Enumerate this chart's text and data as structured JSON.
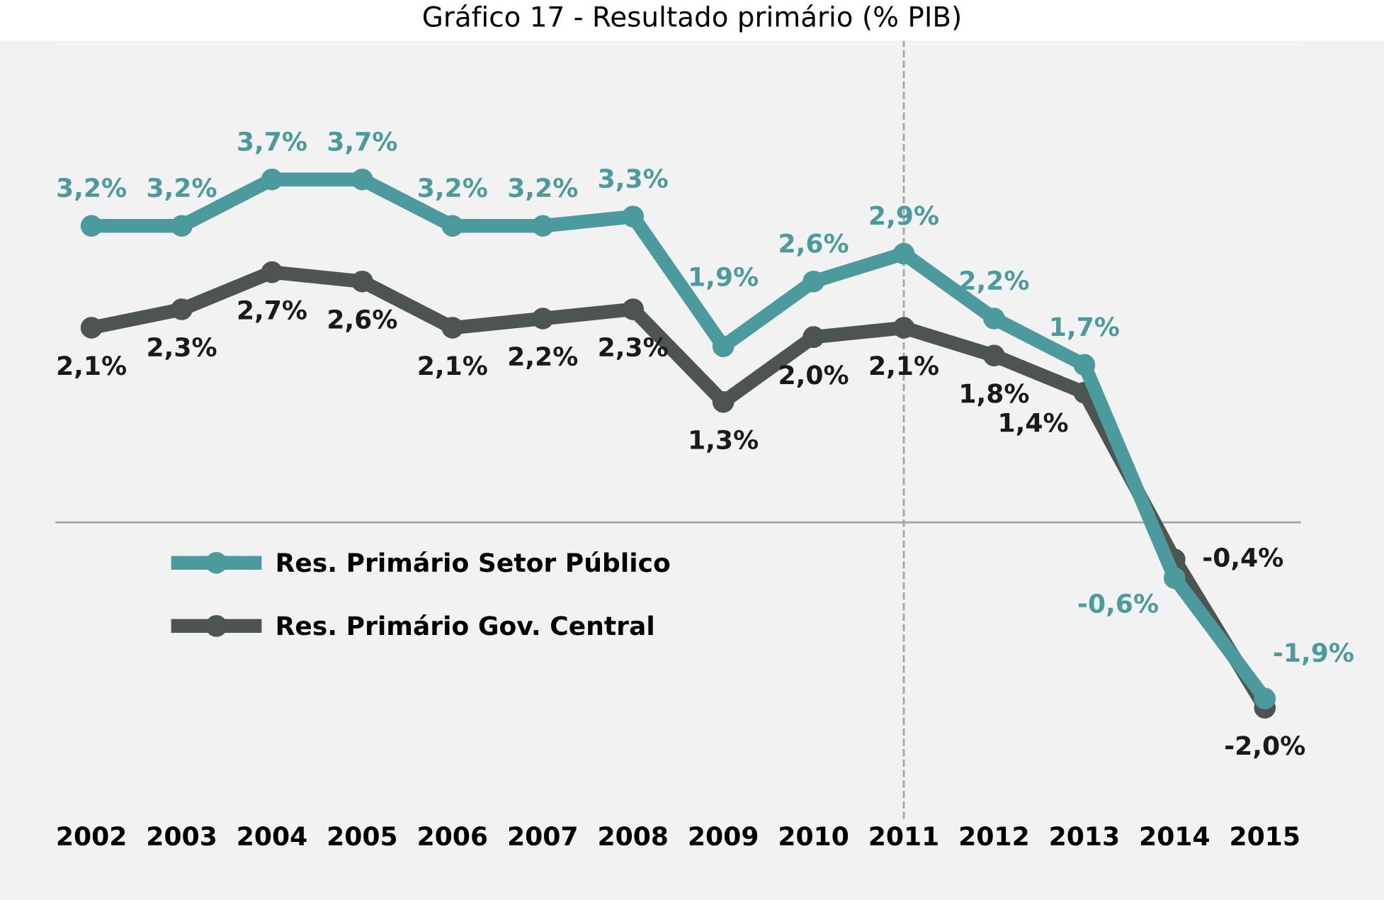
{
  "chart_data": {
    "type": "line",
    "title": "Gráfico 17 - Resultado primário (% PIB)",
    "categories": [
      "2002",
      "2003",
      "2004",
      "2005",
      "2006",
      "2007",
      "2008",
      "2009",
      "2010",
      "2011",
      "2012",
      "2013",
      "2014",
      "2015"
    ],
    "series": [
      {
        "name": "Res. Primário Setor Público",
        "color": "#4a9a9e",
        "values": [
          3.2,
          3.2,
          3.7,
          3.7,
          3.2,
          3.2,
          3.3,
          1.9,
          2.6,
          2.9,
          2.2,
          1.7,
          -0.6,
          -1.9
        ],
        "value_labels": [
          "3,2%",
          "3,2%",
          "3,7%",
          "3,7%",
          "3,2%",
          "3,2%",
          "3,3%",
          "1,9%",
          "2,6%",
          "2,9%",
          "2,2%",
          "1,7%",
          "-0,6%",
          "-1,9%"
        ]
      },
      {
        "name": "Res. Primário Gov. Central",
        "color": "#4d5452",
        "values": [
          2.1,
          2.3,
          2.7,
          2.6,
          2.1,
          2.2,
          2.3,
          1.3,
          2.0,
          2.1,
          1.8,
          1.4,
          -0.4,
          -2.0
        ],
        "value_labels": [
          "2,1%",
          "2,3%",
          "2,7%",
          "2,6%",
          "2,1%",
          "2,2%",
          "2,3%",
          "1,3%",
          "2,0%",
          "2,1%",
          "1,8%",
          "1,4%",
          "-0,4%",
          "-2,0%"
        ]
      }
    ],
    "ylim": [
      -3.2,
      5.2
    ],
    "marker": "circle",
    "line_style": "solid",
    "grid": false,
    "legend": "bottom left",
    "tick_labels": "x",
    "ref_lines": [
      {
        "axis": "y",
        "value": 0,
        "color": "#a6a69a",
        "line_style": "solid"
      },
      {
        "axis": "x",
        "value": "2011",
        "color": "#a6a6a6",
        "line_style": "dashed"
      }
    ]
  }
}
